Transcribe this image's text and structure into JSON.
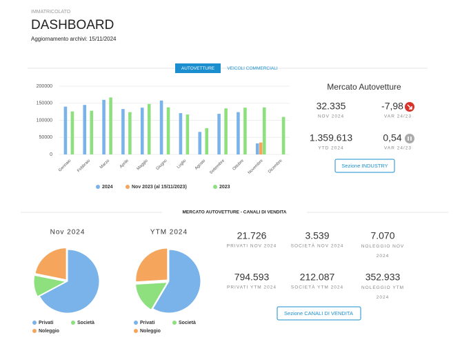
{
  "header": {
    "eyebrow": "IMMATRICOLATO",
    "title": "DASHBOARD",
    "updated": "Aggiornamento archivi: 15/11/2024"
  },
  "tabs": {
    "active": "AUTOVETTURE",
    "other": "VEICOLI COMMERCIALI"
  },
  "market": {
    "title": "Mercato Autovetture",
    "month_value": "32.335",
    "month_label": "NOV 2024",
    "month_var": "-7,98",
    "month_var_label": "VAR 24/23",
    "ytd_value": "1.359.613",
    "ytd_label": "YTD 2024",
    "ytd_var": "0,54",
    "ytd_var_label": "VAR 24/23",
    "button": "Sezione INDUSTRY"
  },
  "channels": {
    "title": "MERCATO AUTOVETTURE - CANALI DI VENDITA",
    "stats": [
      {
        "value": "21.726",
        "label": "PRIVATI NOV 2024"
      },
      {
        "value": "3.539",
        "label": "SOCIETÀ NOV 2024"
      },
      {
        "value": "7.070",
        "label": "NOLEGGIO NOV 2024"
      },
      {
        "value": "794.593",
        "label": "PRIVATI YTM 2024"
      },
      {
        "value": "212.087",
        "label": "SOCIETÀ YTM 2024"
      },
      {
        "value": "352.933",
        "label": "NOLEGGIO YTM 2024"
      }
    ],
    "button": "Sezione CANALI DI VENDITA"
  },
  "chart_data": [
    {
      "type": "bar",
      "categories": [
        "Gennaio",
        "Febbraio",
        "Marzo",
        "Aprile",
        "Maggio",
        "Giugno",
        "Luglio",
        "Agosto",
        "Settembre",
        "Ottobre",
        "Novembre",
        "Dicembre"
      ],
      "series": [
        {
          "name": "2024",
          "color": "#7ab3ea",
          "values": [
            140000,
            145000,
            160000,
            133000,
            137000,
            158000,
            121000,
            66000,
            119000,
            124000,
            32335,
            null
          ]
        },
        {
          "name": "Nov 2023 (al 15/11/2023)",
          "color": "#f5a55c",
          "values": [
            null,
            null,
            null,
            null,
            null,
            null,
            null,
            null,
            null,
            null,
            35000,
            null
          ]
        },
        {
          "name": "2023",
          "color": "#8ee07e",
          "values": [
            126000,
            128000,
            167000,
            124000,
            148000,
            138000,
            117000,
            77000,
            135000,
            137000,
            138000,
            110000
          ]
        }
      ],
      "ylim": [
        0,
        200000
      ],
      "yticks": [
        0,
        50000,
        100000,
        150000,
        200000
      ],
      "grid": true
    },
    {
      "type": "pie",
      "title": "Nov 2024",
      "categories": [
        "Privati",
        "Società",
        "Noleggio"
      ],
      "values": [
        21726,
        3539,
        7070
      ],
      "colors": [
        "#7ab3ea",
        "#8ee07e",
        "#f5a55c"
      ]
    },
    {
      "type": "pie",
      "title": "YTM 2024",
      "categories": [
        "Privati",
        "Società",
        "Noleggio"
      ],
      "values": [
        794593,
        212087,
        352933
      ],
      "colors": [
        "#7ab3ea",
        "#8ee07e",
        "#f5a55c"
      ]
    }
  ]
}
